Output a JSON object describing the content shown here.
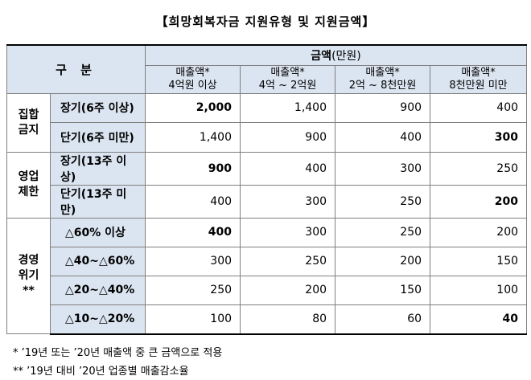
{
  "title": "【희망회복자금 지원유형 및 지원금액】",
  "table": {
    "header": {
      "category": "구 분",
      "amount_label": "금액",
      "amount_unit": "(만원)",
      "columns": [
        {
          "line1": "매출액*",
          "line2": "4억원 이상"
        },
        {
          "line1": "매출액*",
          "line2": "4억 ~ 2억원"
        },
        {
          "line1": "매출액*",
          "line2": "2억 ~ 8천만원"
        },
        {
          "line1": "매출액*",
          "line2": "8천만원 미만"
        }
      ]
    },
    "groups": [
      {
        "name_line1": "집합",
        "name_line2": "금지"
      },
      {
        "name_line1": "영업",
        "name_line2": "제한"
      },
      {
        "name_line1": "경영",
        "name_line2": "위기**"
      }
    ],
    "rows": [
      {
        "label": "장기(6주 이상)",
        "values": [
          "2,000",
          "1,400",
          "900",
          "400"
        ]
      },
      {
        "label": "단기(6주 미만)",
        "values": [
          "1,400",
          "900",
          "400",
          "300"
        ]
      },
      {
        "label": "장기(13주 이상)",
        "values": [
          "900",
          "400",
          "300",
          "250"
        ]
      },
      {
        "label": "단기(13주 미만)",
        "values": [
          "400",
          "300",
          "250",
          "200"
        ]
      },
      {
        "label": "△60% 이상",
        "values": [
          "400",
          "300",
          "250",
          "200"
        ]
      },
      {
        "label": "△40~△60%",
        "values": [
          "300",
          "250",
          "200",
          "150"
        ]
      },
      {
        "label": "△20~△40%",
        "values": [
          "250",
          "200",
          "150",
          "100"
        ]
      },
      {
        "label": "△10~△20%",
        "values": [
          "100",
          "80",
          "60",
          "40"
        ]
      }
    ]
  },
  "notes": {
    "note1": " * ’19년 또는 ’20년 매출액 중 큰 금액으로 적용",
    "note2": "** ’19년 대비 ’20년 업종별 매출감소율"
  },
  "colors": {
    "header_fill": "#dbe5f1",
    "border": "#7f7f7f"
  }
}
